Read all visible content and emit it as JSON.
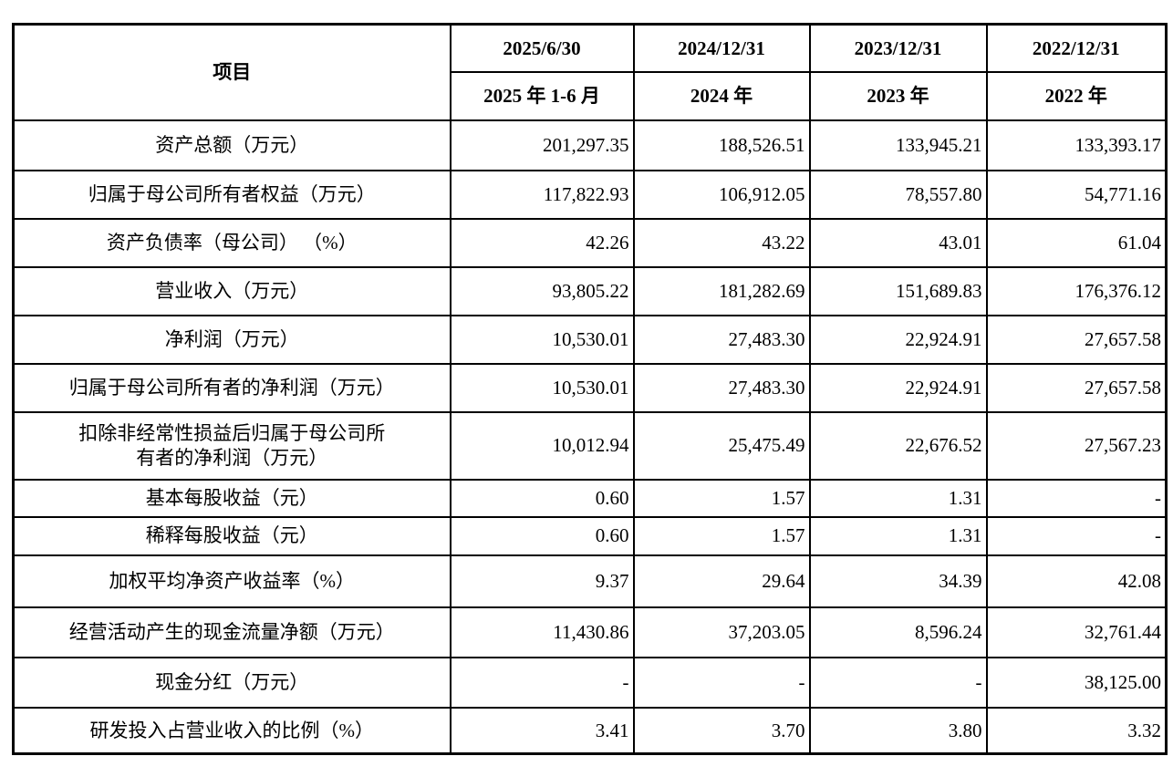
{
  "table": {
    "corner_label": "项目",
    "columns": [
      {
        "date": "2025/6/30",
        "period": "2025 年 1-6 月"
      },
      {
        "date": "2024/12/31",
        "period": "2024 年"
      },
      {
        "date": "2023/12/31",
        "period": "2023 年"
      },
      {
        "date": "2022/12/31",
        "period": "2022 年"
      }
    ],
    "rows": [
      {
        "label": "资产总额（万元）",
        "values": [
          "201,297.35",
          "188,526.51",
          "133,945.21",
          "133,393.17"
        ]
      },
      {
        "label": "归属于母公司所有者权益（万元）",
        "values": [
          "117,822.93",
          "106,912.05",
          "78,557.80",
          "54,771.16"
        ]
      },
      {
        "label": "资产负债率（母公司） （%）",
        "values": [
          "42.26",
          "43.22",
          "43.01",
          "61.04"
        ]
      },
      {
        "label": "营业收入（万元）",
        "values": [
          "93,805.22",
          "181,282.69",
          "151,689.83",
          "176,376.12"
        ]
      },
      {
        "label": "净利润（万元）",
        "values": [
          "10,530.01",
          "27,483.30",
          "22,924.91",
          "27,657.58"
        ]
      },
      {
        "label": "归属于母公司所有者的净利润（万元）",
        "values": [
          "10,530.01",
          "27,483.30",
          "22,924.91",
          "27,657.58"
        ]
      },
      {
        "label": "扣除非经常性损益后归属于母公司所\n有者的净利润（万元）",
        "values": [
          "10,012.94",
          "25,475.49",
          "22,676.52",
          "27,567.23"
        ]
      },
      {
        "label": "基本每股收益（元）",
        "values": [
          "0.60",
          "1.57",
          "1.31",
          "-"
        ]
      },
      {
        "label": "稀释每股收益（元）",
        "values": [
          "0.60",
          "1.57",
          "1.31",
          "-"
        ]
      },
      {
        "label": "加权平均净资产收益率（%）",
        "values": [
          "9.37",
          "29.64",
          "34.39",
          "42.08"
        ]
      },
      {
        "label": "经营活动产生的现金流量净额（万元）",
        "values": [
          "11,430.86",
          "37,203.05",
          "8,596.24",
          "32,761.44"
        ]
      },
      {
        "label": "现金分红（万元）",
        "values": [
          "-",
          "-",
          "-",
          "38,125.00"
        ]
      },
      {
        "label": "研发投入占营业收入的比例（%）",
        "values": [
          "3.41",
          "3.70",
          "3.80",
          "3.32"
        ]
      }
    ]
  },
  "colors": {
    "border": "#000000",
    "text": "#000000",
    "background": "#ffffff"
  }
}
